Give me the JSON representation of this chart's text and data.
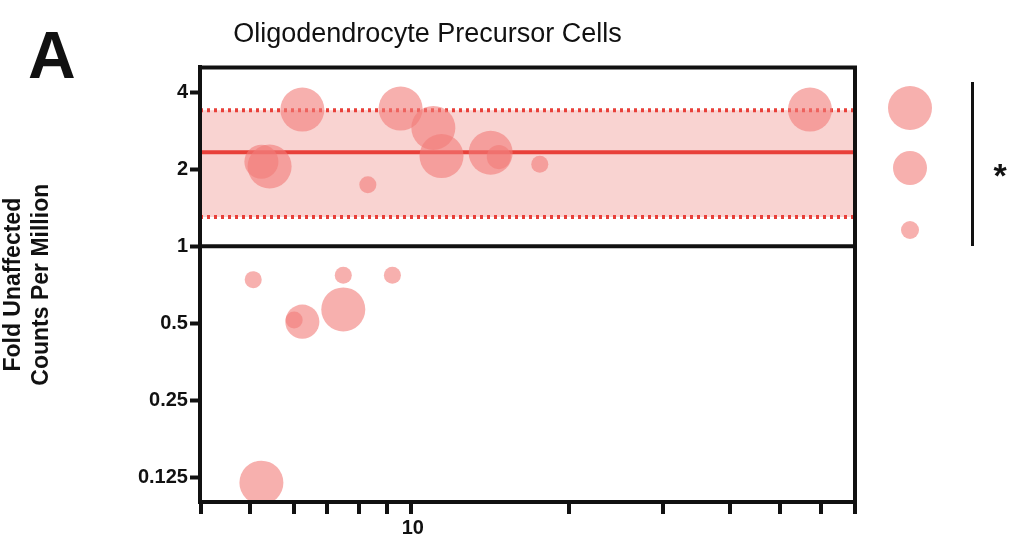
{
  "chart_data": {
    "type": "bubble",
    "title": "Oligodendrocyte Precursor Cells",
    "ylabel": "Fold Unaffected Counts Per Million",
    "annotations": [
      "A",
      "*",
      "10"
    ],
    "categories": [
      null,
      null,
      null,
      null,
      null,
      null,
      null,
      null,
      null,
      null,
      null,
      null,
      null,
      null,
      null,
      null,
      null,
      null,
      null,
      null,
      null,
      null,
      null,
      null,
      null,
      null,
      null,
      null,
      null,
      null,
      null,
      null,
      null,
      null,
      null,
      null,
      null,
      null,
      null,
      null,
      null,
      null,
      null,
      null,
      null,
      null,
      null,
      null,
      null,
      null,
      null,
      null,
      null,
      null,
      null,
      null,
      null,
      null,
      null,
      null,
      null,
      null,
      null,
      null,
      null,
      null,
      null,
      null,
      null,
      null,
      null,
      null,
      null,
      null,
      null,
      null,
      null,
      null,
      null,
      null
    ],
    "series": [
      {
        "color": "#f27c78",
        "values": [
          null,
          null,
          null,
          null,
          null,
          null,
          0.74,
          2.14,
          2.05,
          null,
          null,
          0.515,
          3.42,
          null,
          null,
          null,
          null,
          0.77,
          null,
          null,
          1.74,
          null,
          null,
          0.77,
          3.45,
          null,
          null,
          null,
          2.9,
          2.25,
          null,
          null,
          null,
          null,
          null,
          2.32,
          2.23,
          null,
          null,
          null,
          null,
          2.09,
          null,
          null,
          null,
          null,
          null,
          null,
          null,
          null,
          null,
          null,
          null,
          null,
          null,
          null,
          null,
          null,
          null,
          null,
          null,
          null,
          null,
          null,
          null,
          null,
          null,
          null,
          null,
          null,
          null,
          null,
          null,
          null,
          3.42,
          null,
          null,
          null,
          null,
          null
        ],
        "sizes": [
          null,
          null,
          null,
          null,
          null,
          null,
          0.15,
          0.6,
          1,
          null,
          null,
          0.15,
          1,
          null,
          null,
          null,
          null,
          0.15,
          null,
          null,
          0.15,
          null,
          null,
          0.15,
          1,
          null,
          null,
          null,
          1,
          1,
          null,
          null,
          null,
          null,
          null,
          1,
          0.3,
          null,
          null,
          null,
          null,
          0.15,
          null,
          null,
          null,
          null,
          null,
          null,
          null,
          null,
          null,
          null,
          null,
          null,
          null,
          null,
          null,
          null,
          null,
          null,
          null,
          null,
          null,
          null,
          null,
          null,
          null,
          null,
          null,
          null,
          null,
          null,
          null,
          null,
          1,
          null,
          null,
          null,
          null,
          null
        ]
      },
      {
        "color": "#f27c78",
        "values": [
          null,
          null,
          null,
          null,
          null,
          null,
          null,
          0.119,
          null,
          null,
          null,
          null,
          0.507,
          null,
          null,
          null,
          null,
          0.566,
          null,
          null,
          null,
          null,
          null,
          null,
          null,
          null,
          null,
          null,
          null,
          null,
          null,
          null,
          null,
          null,
          null,
          null,
          null,
          null,
          null,
          null,
          null,
          null,
          null,
          null,
          null,
          null,
          null,
          null,
          null,
          null,
          null,
          null,
          null,
          null,
          null,
          null,
          null,
          null,
          null,
          null,
          null,
          null,
          null,
          null,
          null,
          null,
          null,
          null,
          null,
          null,
          null,
          null,
          null,
          null,
          null,
          null,
          null,
          null,
          null,
          null
        ],
        "sizes": [
          null,
          null,
          null,
          null,
          null,
          null,
          null,
          1,
          null,
          null,
          null,
          null,
          0.6,
          null,
          null,
          null,
          null,
          1,
          null,
          null,
          null,
          null,
          null,
          null,
          null,
          null,
          null,
          null,
          null,
          null,
          null,
          null,
          null,
          null,
          null,
          null,
          null,
          null,
          null,
          null,
          null,
          null,
          null,
          null,
          null,
          null,
          null,
          null,
          null,
          null,
          null,
          null,
          null,
          null,
          null,
          null,
          null,
          null,
          null,
          null,
          null,
          null,
          null,
          null,
          null,
          null,
          null,
          null,
          null,
          null,
          null,
          null,
          null,
          null,
          null,
          null,
          null,
          null,
          null,
          null
        ]
      }
    ],
    "log": "y",
    "ylim": [
      0.1,
      5
    ],
    "yticks": [
      0.125,
      0.25,
      0.5,
      1,
      2,
      4
    ],
    "ref_lines": [
      {
        "axis": "y",
        "value": 1,
        "color": "#111111",
        "line_style": "solid"
      },
      {
        "axis": "y",
        "value": 2.33,
        "color": "#e8403a",
        "line_style": "solid"
      },
      {
        "axis": "y",
        "value": 3.4,
        "color": "#e8403a",
        "line_style": "dotted"
      },
      {
        "axis": "y",
        "value": 1.3,
        "color": "#e8403a",
        "line_style": "dotted"
      }
    ],
    "bands": [
      {
        "axis": "y",
        "from": 1.3,
        "to": 3.4,
        "color": "#f9d3d1"
      }
    ],
    "grid": false,
    "legend": false
  }
}
